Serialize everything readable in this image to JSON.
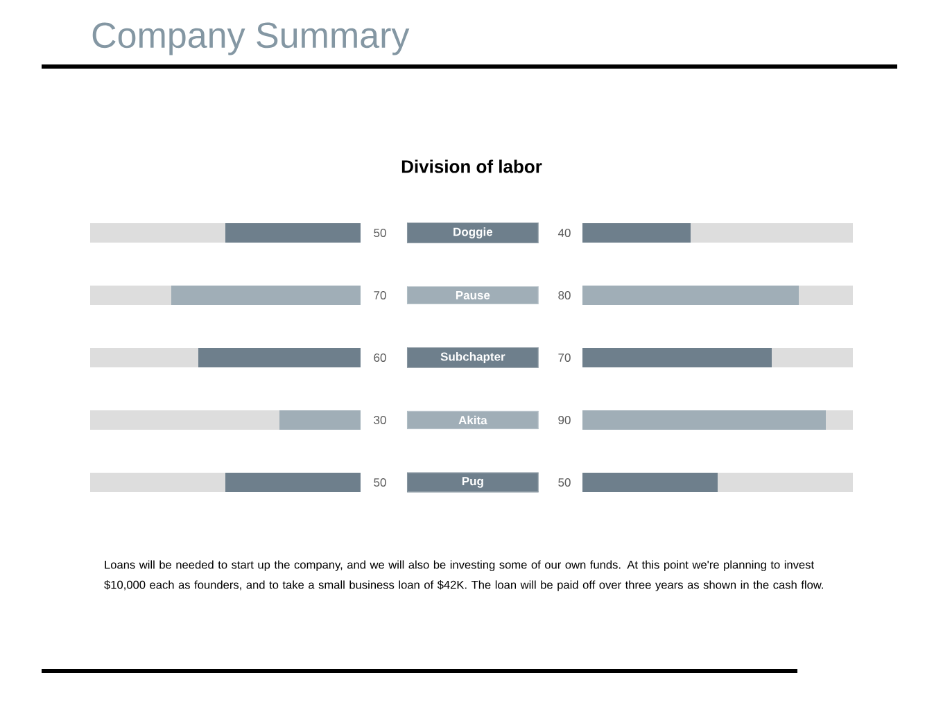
{
  "chart_data": [
    {
      "type": "bar",
      "orientation": "horizontal",
      "stacked": true,
      "title": "Company Summary",
      "subtitle": "Division of labor",
      "categories": [
        "Doggie",
        "Pause",
        "Subchapter",
        "Akita",
        "Pug"
      ],
      "xlim": [
        100,
        0
      ],
      "tick_labels": "y",
      "series": [
        {
          "colors": [
            "#6e7f8c",
            "#a0aeb7",
            "#6e7f8c",
            "#a0aeb7",
            "#6e7f8c"
          ],
          "values": [
            50,
            70,
            60,
            30,
            50
          ],
          "value_labels": [
            "50",
            "70",
            "60",
            "30",
            "50"
          ]
        },
        {
          "color": "#dddddd",
          "values": [
            50,
            30,
            40,
            70,
            50
          ]
        }
      ]
    },
    {
      "type": "bar",
      "orientation": "horizontal",
      "stacked": true,
      "categories": [
        null,
        null,
        null,
        null,
        null
      ],
      "xlim": [
        0,
        100
      ],
      "tick_labels": false,
      "series": [
        {
          "colors": [
            "#6e7f8c",
            "#a0aeb7",
            "#6e7f8c",
            "#a0aeb7",
            "#6e7f8c"
          ],
          "values": [
            40,
            80,
            70,
            90,
            50
          ],
          "value_labels": [
            "40",
            "80",
            "70",
            "90",
            "50"
          ]
        },
        {
          "color": "#dddddd",
          "values": [
            60,
            20,
            30,
            10,
            50
          ]
        }
      ],
      "annotations": [
        "Loans will be needed to start up the company, and we will also be investing some of our own funds. At this point we're planning to invest $10,000 each as founders, and to take a small business loan of $42K. The loan will be paid off over three years as shown in the cash flow."
      ]
    }
  ]
}
